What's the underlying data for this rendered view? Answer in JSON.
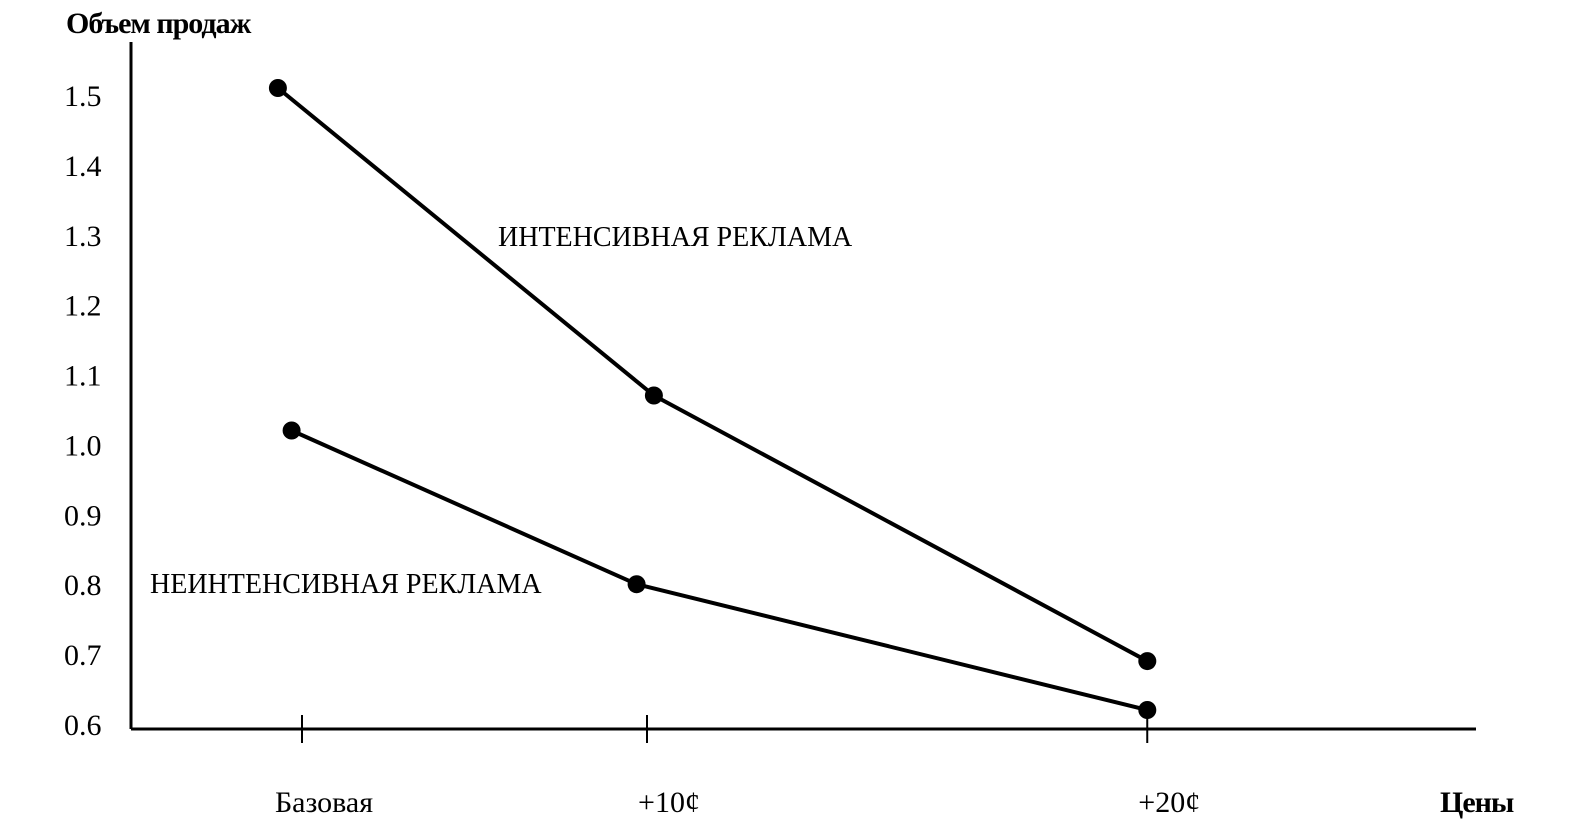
{
  "chart_data": {
    "type": "line",
    "title": "",
    "xlabel": "Цены",
    "ylabel": "Объем продаж",
    "categories": [
      "Базовая",
      "+10¢",
      "+20¢"
    ],
    "y_ticks": [
      "1.5",
      "1.4",
      "1.3",
      "1.2",
      "1.1",
      "1.0",
      "0.9",
      "0.8",
      "0.7",
      "0.6"
    ],
    "ylim": [
      0.6,
      1.5
    ],
    "grid": false,
    "legend": "none",
    "series": [
      {
        "name": "ИНТЕНСИВНАЯ РЕКЛАМА",
        "values": [
          1.51,
          1.07,
          0.69
        ],
        "x_positions": [
          -0.07,
          1.02,
          2.45
        ]
      },
      {
        "name": "НЕИНТЕНСИВНАЯ РЕКЛАМА",
        "values": [
          1.02,
          0.8,
          0.62
        ],
        "x_positions": [
          -0.03,
          0.97,
          2.45
        ]
      }
    ],
    "colors": {
      "line": "#000000",
      "background": "#ffffff"
    }
  }
}
